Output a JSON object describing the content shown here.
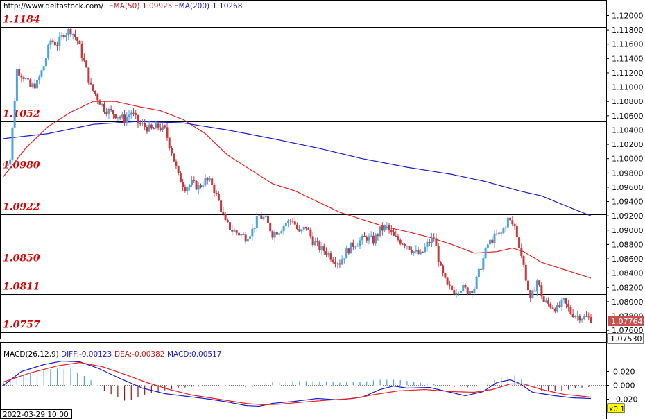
{
  "header": {
    "site": "http://www.deltastock.com/",
    "ema50_label": "EMA(50)",
    "ema50_value": "1.09925",
    "ema200_label": "EMA(200)",
    "ema200_value": "1.10268"
  },
  "macd_header": {
    "title": "MACD(26,12,9)",
    "diff": "DIFF:-0.00123",
    "dea": "DEA:-0.00382",
    "macd": "MACD:0.00517"
  },
  "footer": {
    "timestamp": "2022-03-29 10:00",
    "zoom": "x0.1"
  },
  "colors": {
    "bull": "#4aa3df",
    "bear": "#c4393c",
    "ema50": "#e82020",
    "ema200": "#1a1acc",
    "level_text": "#e00000",
    "price_box": "#c9504f",
    "price_box_alt": "#ffffff"
  },
  "chart_data": [
    {
      "type": "candlestick",
      "ylim": [
        1.0753,
        1.1215
      ],
      "y_ticks": [
        "1.12000",
        "1.11800",
        "1.11600",
        "1.11400",
        "1.11200",
        "1.11000",
        "1.10800",
        "1.10600",
        "1.10400",
        "1.10200",
        "1.10000",
        "1.09800",
        "1.09600",
        "1.09400",
        "1.09200",
        "1.09000",
        "1.08800",
        "1.08600",
        "1.08400",
        "1.08200",
        "1.08000",
        "1.07800",
        "1.07600"
      ],
      "levels": [
        {
          "value": 1.1184,
          "label": "1.1184"
        },
        {
          "value": 1.1052,
          "label": "1.1052"
        },
        {
          "value": 1.098,
          "label": "1.0980"
        },
        {
          "value": 1.0922,
          "label": "1.0922"
        },
        {
          "value": 1.085,
          "label": "1.0850"
        },
        {
          "value": 1.0811,
          "label": "1.0811"
        },
        {
          "value": 1.0757,
          "label": "1.0757"
        }
      ],
      "current_price": "1.07764",
      "current_price_value": 1.07764,
      "bottom_price": "1.07530",
      "anchors": [
        [
          0,
          1.099
        ],
        [
          3,
          1.1
        ],
        [
          6,
          1.1125
        ],
        [
          9,
          1.1115
        ],
        [
          12,
          1.11
        ],
        [
          15,
          1.1105
        ],
        [
          18,
          1.113
        ],
        [
          21,
          1.1165
        ],
        [
          24,
          1.116
        ],
        [
          27,
          1.1175
        ],
        [
          30,
          1.118
        ],
        [
          33,
          1.1165
        ],
        [
          36,
          1.1135
        ],
        [
          39,
          1.11
        ],
        [
          42,
          1.1085
        ],
        [
          45,
          1.107
        ],
        [
          48,
          1.1065
        ],
        [
          51,
          1.106
        ],
        [
          54,
          1.1055
        ],
        [
          57,
          1.1065
        ],
        [
          60,
          1.105
        ],
        [
          63,
          1.1045
        ],
        [
          66,
          1.104
        ],
        [
          69,
          1.1045
        ],
        [
          72,
          1.104
        ],
        [
          75,
          1.101
        ],
        [
          78,
          1.0975
        ],
        [
          81,
          1.096
        ],
        [
          84,
          1.0965
        ],
        [
          87,
          1.096
        ],
        [
          90,
          1.097
        ],
        [
          93,
          1.0965
        ],
        [
          96,
          1.094
        ],
        [
          99,
          1.091
        ],
        [
          102,
          1.09
        ],
        [
          105,
          1.0895
        ],
        [
          108,
          1.089
        ],
        [
          111,
          1.09
        ],
        [
          114,
          1.092
        ],
        [
          117,
          1.0915
        ],
        [
          120,
          1.0895
        ],
        [
          123,
          1.09
        ],
        [
          126,
          1.091
        ],
        [
          129,
          1.0915
        ],
        [
          132,
          1.0895
        ],
        [
          135,
          1.0905
        ],
        [
          138,
          1.0885
        ],
        [
          141,
          1.0875
        ],
        [
          144,
          1.087
        ],
        [
          147,
          1.086
        ],
        [
          150,
          1.0855
        ],
        [
          153,
          1.087
        ],
        [
          156,
          1.088
        ],
        [
          159,
          1.0885
        ],
        [
          162,
          1.089
        ],
        [
          165,
          1.0885
        ],
        [
          168,
          1.09
        ],
        [
          171,
          1.0905
        ],
        [
          174,
          1.089
        ],
        [
          177,
          1.0885
        ],
        [
          180,
          1.088
        ],
        [
          183,
          1.087
        ],
        [
          186,
          1.0865
        ],
        [
          189,
          1.088
        ],
        [
          192,
          1.089
        ],
        [
          195,
          1.0845
        ],
        [
          198,
          1.082
        ],
        [
          201,
          1.0815
        ],
        [
          204,
          1.082
        ],
        [
          207,
          1.0815
        ],
        [
          210,
          1.082
        ],
        [
          213,
          1.085
        ],
        [
          216,
          1.088
        ],
        [
          219,
          1.089
        ],
        [
          222,
          1.0895
        ],
        [
          225,
          1.0915
        ],
        [
          228,
          1.0905
        ],
        [
          230,
          1.088
        ],
        [
          232,
          1.085
        ],
        [
          235,
          1.08
        ],
        [
          238,
          1.083
        ],
        [
          241,
          1.08
        ],
        [
          244,
          1.0795
        ],
        [
          247,
          1.079
        ],
        [
          250,
          1.08
        ],
        [
          253,
          1.0785
        ],
        [
          256,
          1.078
        ],
        [
          259,
          1.0778
        ],
        [
          262,
          1.07764
        ]
      ],
      "series": [
        {
          "name": "EMA(50)",
          "color": "#e82020",
          "points": [
            [
              0,
              1.0975
            ],
            [
              10,
              1.1015
            ],
            [
              20,
              1.1045
            ],
            [
              30,
              1.1065
            ],
            [
              40,
              1.108
            ],
            [
              50,
              1.108
            ],
            [
              60,
              1.1073
            ],
            [
              70,
              1.1067
            ],
            [
              80,
              1.1055
            ],
            [
              90,
              1.1035
            ],
            [
              100,
              1.1005
            ],
            [
              110,
              1.0985
            ],
            [
              120,
              1.0965
            ],
            [
              130,
              1.0955
            ],
            [
              140,
              1.094
            ],
            [
              150,
              1.0925
            ],
            [
              160,
              1.0915
            ],
            [
              170,
              1.0905
            ],
            [
              180,
              1.0898
            ],
            [
              190,
              1.089
            ],
            [
              200,
              1.088
            ],
            [
              210,
              1.0868
            ],
            [
              220,
              1.087
            ],
            [
              227,
              1.0875
            ],
            [
              232,
              1.087
            ],
            [
              240,
              1.0855
            ],
            [
              250,
              1.0845
            ],
            [
              262,
              1.0833
            ]
          ]
        },
        {
          "name": "EMA(200)",
          "color": "#1a1acc",
          "points": [
            [
              0,
              1.1028
            ],
            [
              20,
              1.1035
            ],
            [
              40,
              1.1048
            ],
            [
              60,
              1.1052
            ],
            [
              80,
              1.105
            ],
            [
              100,
              1.104
            ],
            [
              120,
              1.1028
            ],
            [
              140,
              1.1015
            ],
            [
              160,
              1.1
            ],
            [
              180,
              1.0988
            ],
            [
              200,
              1.0978
            ],
            [
              215,
              1.0968
            ],
            [
              230,
              1.0955
            ],
            [
              240,
              1.0948
            ],
            [
              250,
              1.0935
            ],
            [
              262,
              1.092
            ]
          ]
        }
      ]
    },
    {
      "type": "macd",
      "ylim": [
        -0.03,
        0.04
      ],
      "y_ticks": [
        "0.020",
        "0.000",
        "-0.020"
      ],
      "diff_points": [
        [
          0,
          0.0
        ],
        [
          8,
          0.02
        ],
        [
          18,
          0.03
        ],
        [
          26,
          0.035
        ],
        [
          34,
          0.034
        ],
        [
          42,
          0.025
        ],
        [
          52,
          0.01
        ],
        [
          62,
          -0.004
        ],
        [
          72,
          -0.012
        ],
        [
          82,
          -0.016
        ],
        [
          92,
          -0.02
        ],
        [
          100,
          -0.024
        ],
        [
          108,
          -0.029
        ],
        [
          114,
          -0.03
        ],
        [
          120,
          -0.026
        ],
        [
          130,
          -0.023
        ],
        [
          140,
          -0.019
        ],
        [
          150,
          -0.021
        ],
        [
          160,
          -0.017
        ],
        [
          168,
          -0.006
        ],
        [
          174,
          -0.001
        ],
        [
          180,
          -0.004
        ],
        [
          190,
          -0.003
        ],
        [
          198,
          -0.009
        ],
        [
          206,
          -0.015
        ],
        [
          214,
          -0.009
        ],
        [
          220,
          0.004
        ],
        [
          226,
          0.008
        ],
        [
          230,
          0.003
        ],
        [
          236,
          -0.01
        ],
        [
          246,
          -0.015
        ],
        [
          254,
          -0.018
        ],
        [
          262,
          -0.019
        ]
      ],
      "dea_points": [
        [
          0,
          0.005
        ],
        [
          12,
          0.018
        ],
        [
          24,
          0.028
        ],
        [
          34,
          0.033
        ],
        [
          44,
          0.027
        ],
        [
          54,
          0.016
        ],
        [
          64,
          0.004
        ],
        [
          74,
          -0.006
        ],
        [
          84,
          -0.014
        ],
        [
          96,
          -0.02
        ],
        [
          108,
          -0.026
        ],
        [
          116,
          -0.028
        ],
        [
          124,
          -0.027
        ],
        [
          134,
          -0.024
        ],
        [
          146,
          -0.021
        ],
        [
          156,
          -0.019
        ],
        [
          166,
          -0.013
        ],
        [
          176,
          -0.008
        ],
        [
          188,
          -0.006
        ],
        [
          200,
          -0.009
        ],
        [
          210,
          -0.01
        ],
        [
          218,
          -0.006
        ],
        [
          226,
          0.002
        ],
        [
          232,
          0.002
        ],
        [
          240,
          -0.006
        ],
        [
          250,
          -0.013
        ],
        [
          262,
          -0.017
        ]
      ],
      "hist_points": [
        [
          0,
          0.004
        ],
        [
          10,
          0.016
        ],
        [
          22,
          0.024
        ],
        [
          30,
          0.024
        ],
        [
          38,
          0.01
        ],
        [
          44,
          -0.006
        ],
        [
          50,
          -0.016
        ],
        [
          54,
          -0.022
        ],
        [
          58,
          -0.02
        ],
        [
          64,
          -0.012
        ],
        [
          74,
          -0.006
        ],
        [
          84,
          -0.002
        ],
        [
          96,
          -0.001
        ],
        [
          110,
          -0.003
        ],
        [
          118,
          0.004
        ],
        [
          126,
          0.006
        ],
        [
          140,
          0.006
        ],
        [
          150,
          0.004
        ],
        [
          160,
          0.005
        ],
        [
          168,
          0.008
        ],
        [
          176,
          0.008
        ],
        [
          186,
          0.004
        ],
        [
          196,
          0.0
        ],
        [
          204,
          -0.004
        ],
        [
          210,
          -0.002
        ],
        [
          216,
          0.003
        ],
        [
          222,
          0.012
        ],
        [
          228,
          0.014
        ],
        [
          234,
          0.004
        ],
        [
          240,
          -0.008
        ],
        [
          248,
          -0.008
        ],
        [
          256,
          -0.004
        ],
        [
          262,
          -0.002
        ]
      ]
    }
  ]
}
